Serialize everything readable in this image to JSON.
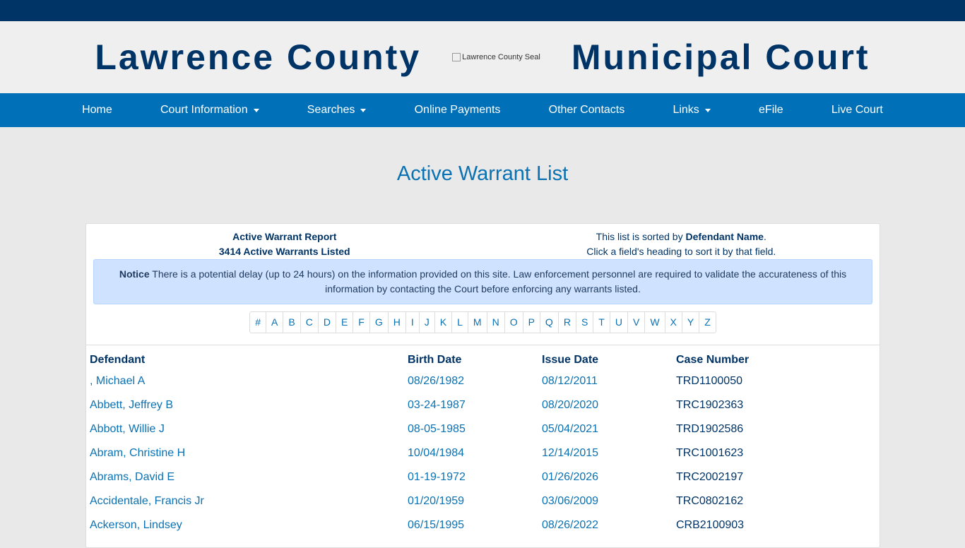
{
  "header": {
    "left_title": "Lawrence County",
    "seal_alt": "Lawrence County Seal",
    "right_title": "Municipal Court"
  },
  "nav": [
    {
      "label": "Home",
      "dropdown": false
    },
    {
      "label": "Court Information",
      "dropdown": true
    },
    {
      "label": "Searches",
      "dropdown": true
    },
    {
      "label": "Online Payments",
      "dropdown": false
    },
    {
      "label": "Other Contacts",
      "dropdown": false
    },
    {
      "label": "Links",
      "dropdown": true
    },
    {
      "label": "eFile",
      "dropdown": false
    },
    {
      "label": "Live Court",
      "dropdown": false
    }
  ],
  "page_title": "Active Warrant List",
  "report": {
    "title": "Active Warrant Report",
    "count": "3414 Active Warrants Listed",
    "sorted_prefix": "This list is sorted by ",
    "sorted_field": "Defendant Name",
    "sorted_suffix": ".",
    "hint": "Click a field's heading to sort it by that field."
  },
  "notice": {
    "label": "Notice",
    "text": " There is a potential delay (up to 24 hours) on the information provided on this site. Law enforcement personnel are required to validate the accurateness of this information by contacting the Court before enforcing any warrants listed."
  },
  "alphabet": [
    "#",
    "A",
    "B",
    "C",
    "D",
    "E",
    "F",
    "G",
    "H",
    "I",
    "J",
    "K",
    "L",
    "M",
    "N",
    "O",
    "P",
    "Q",
    "R",
    "S",
    "T",
    "U",
    "V",
    "W",
    "X",
    "Y",
    "Z"
  ],
  "table": {
    "headers": [
      "Defendant",
      "Birth Date",
      "Issue Date",
      "Case Number"
    ],
    "rows": [
      [
        ", Michael A",
        "08/26/1982",
        "08/12/2011",
        "TRD1100050"
      ],
      [
        "Abbett, Jeffrey B",
        "03-24-1987",
        "08/20/2020",
        "TRC1902363"
      ],
      [
        "Abbott, Willie J",
        "08-05-1985",
        "05/04/2021",
        "TRD1902586"
      ],
      [
        "Abram, Christine H",
        "10/04/1984",
        "12/14/2015",
        "TRC1001623"
      ],
      [
        "Abrams, David E",
        "01-19-1972",
        "01/26/2026",
        "TRC2002197"
      ],
      [
        "Accidentale, Francis Jr",
        "01/20/1959",
        "03/06/2009",
        "TRC0802162"
      ],
      [
        "Ackerson, Lindsey",
        "06/15/1995",
        "08/26/2022",
        "CRB2100903"
      ]
    ]
  }
}
